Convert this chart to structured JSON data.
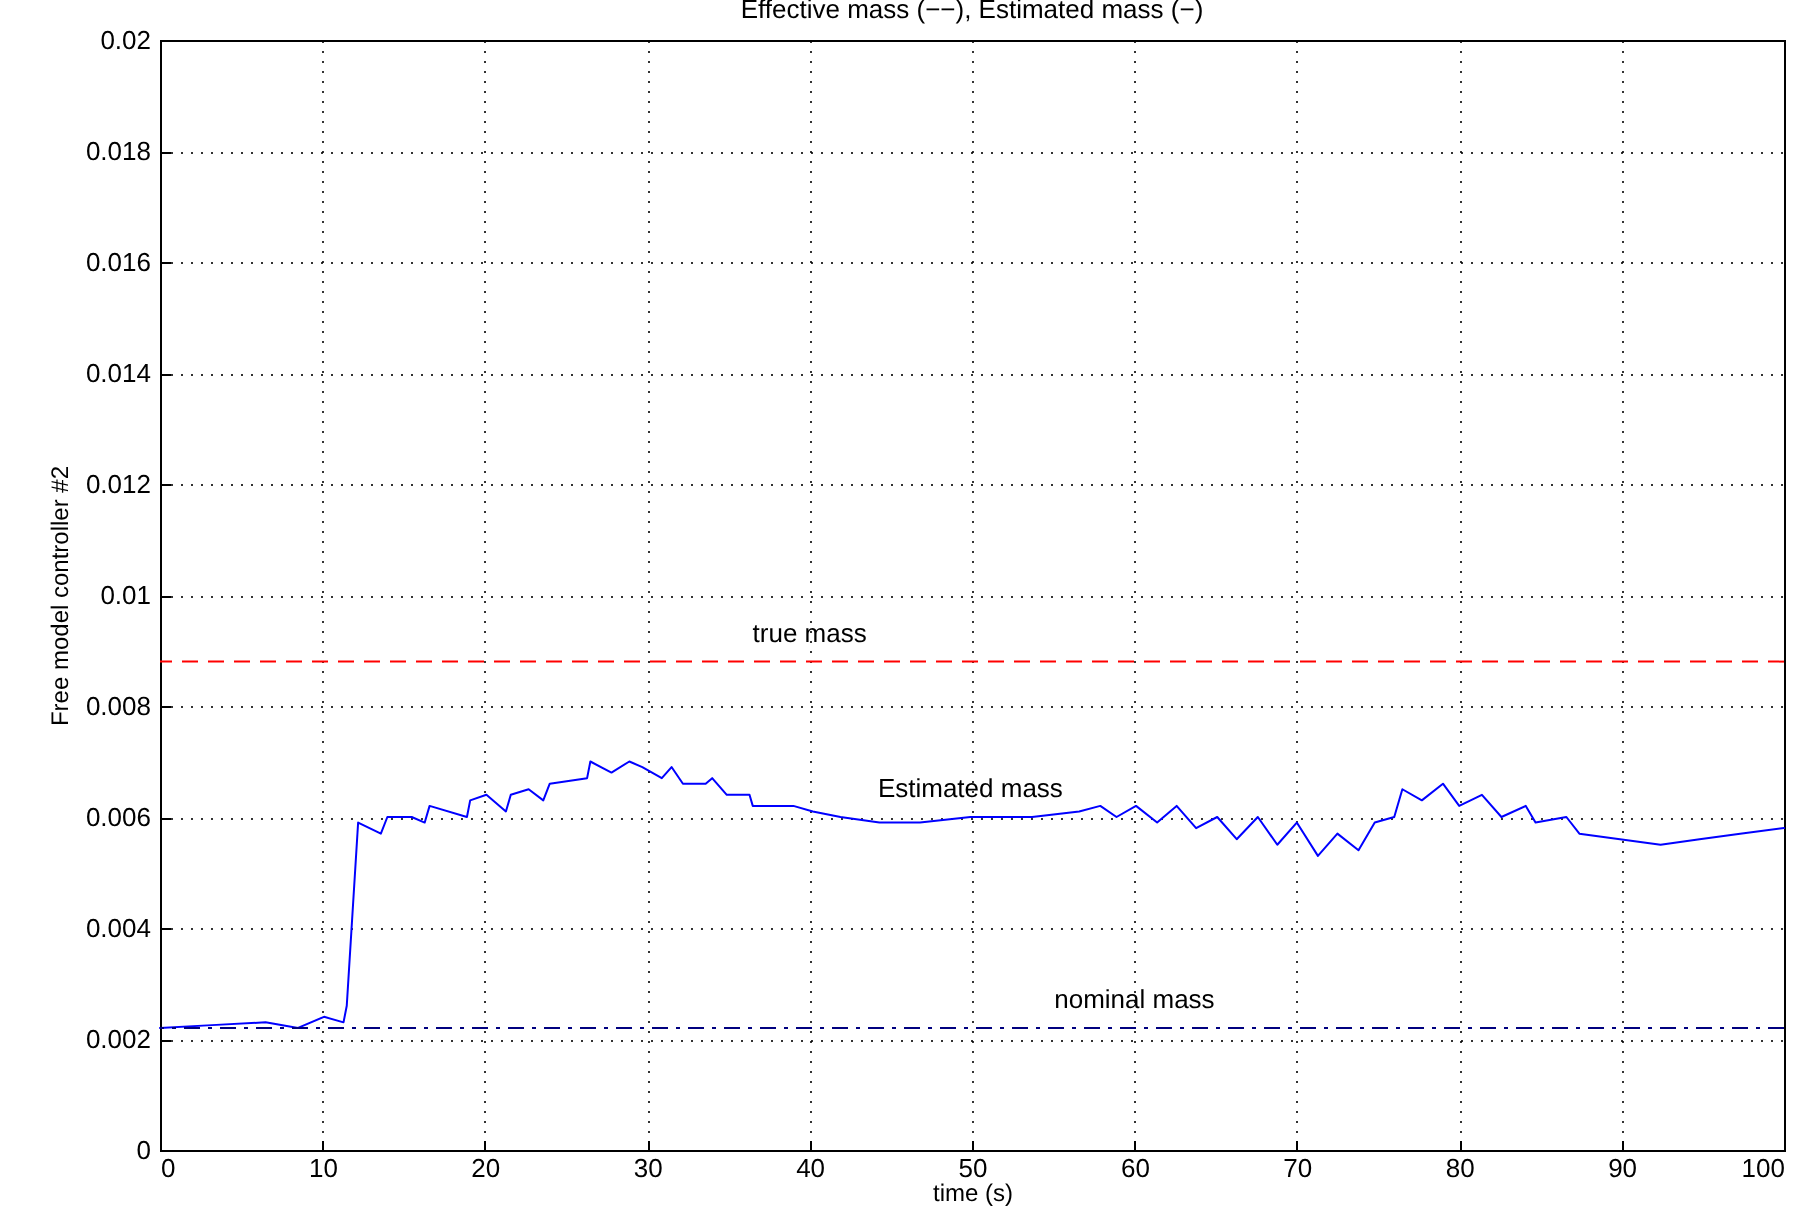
{
  "chart_data": {
    "type": "line",
    "title": "Effective mass (−−), Estimated mass (−)",
    "xlabel": "time (s)",
    "ylabel": "Free model controller #2",
    "x": [
      0,
      3.2,
      6.5,
      8.5,
      10.1,
      11.3,
      11.5,
      12.2,
      13.6,
      14,
      15.5,
      16.3,
      16.6,
      18.9,
      19.1,
      20.1,
      21.3,
      21.6,
      22.7,
      23.6,
      24,
      26.3,
      26.5,
      27.8,
      28.9,
      29.7,
      30.9,
      31.5,
      32.2,
      33.6,
      34,
      34.9,
      36.3,
      36.5,
      38.6,
      39,
      40.2,
      41.9,
      44.3,
      46.8,
      49.9,
      53.7,
      56.6,
      57.9,
      58.9,
      60.1,
      61.4,
      62.6,
      63.8,
      65.1,
      66.3,
      67.6,
      68.8,
      70,
      71.3,
      72.5,
      73.8,
      74.8,
      76,
      76.5,
      77.7,
      79,
      80,
      81.4,
      82.6,
      84.1,
      84.7,
      86.6,
      87.4,
      89.9,
      92.4,
      94.8,
      97.3,
      100
    ],
    "series": [
      {
        "name": "Estimated mass",
        "color": "#0000ff",
        "values": [
          0.0022,
          0.00225,
          0.0023,
          0.0022,
          0.0024,
          0.0023,
          0.0026,
          0.0059,
          0.0057,
          0.006,
          0.006,
          0.0059,
          0.0062,
          0.006,
          0.0063,
          0.0064,
          0.0061,
          0.0064,
          0.0065,
          0.0063,
          0.0066,
          0.0067,
          0.007,
          0.0068,
          0.007,
          0.0069,
          0.0067,
          0.0069,
          0.0066,
          0.0066,
          0.0067,
          0.0064,
          0.0064,
          0.0062,
          0.0062,
          0.0062,
          0.0061,
          0.006,
          0.0059,
          0.0059,
          0.006,
          0.006,
          0.0061,
          0.0062,
          0.006,
          0.0062,
          0.0059,
          0.0062,
          0.0058,
          0.006,
          0.0056,
          0.006,
          0.0055,
          0.0059,
          0.0053,
          0.0057,
          0.0054,
          0.0059,
          0.006,
          0.0065,
          0.0063,
          0.0066,
          0.0062,
          0.0064,
          0.006,
          0.0062,
          0.0059,
          0.006,
          0.0057,
          0.0056,
          0.0055,
          0.0056,
          0.0057,
          0.0058
        ]
      }
    ],
    "ref_lines": [
      {
        "axis": "y",
        "value": 0.0088,
        "label": "true mass",
        "color": "#ff0000",
        "line_style": "dashed"
      },
      {
        "axis": "y",
        "value": 0.0022,
        "label": "nominal mass",
        "color": "#00007f",
        "line_style": "dashdot"
      }
    ],
    "xlim": [
      0,
      100
    ],
    "xticks": [
      0,
      10,
      20,
      30,
      40,
      50,
      60,
      70,
      80,
      90,
      100
    ],
    "ylim": [
      0,
      0.02
    ],
    "yticks": [
      0,
      0.002,
      0.004,
      0.006,
      0.008,
      0.01,
      0.012,
      0.014,
      0.016,
      0.018,
      0.02
    ],
    "grid": true,
    "line_style": "solid",
    "marker": "none"
  }
}
